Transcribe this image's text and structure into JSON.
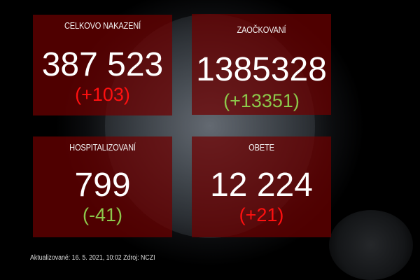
{
  "cards": [
    {
      "title": "CELKOVO NAKAZENÍ",
      "value": "387 523",
      "delta": "(+103)",
      "delta_color": "#ff1010"
    },
    {
      "title": "ZAOČKOVANÍ",
      "value": "1385328",
      "delta": "(+13351)",
      "delta_color": "#8cc84b"
    },
    {
      "title": "HOSPITALIZOVANÍ",
      "value": "799",
      "delta": "(-41)",
      "delta_color": "#8cc84b"
    },
    {
      "title": "OBETE",
      "value": "12 224",
      "delta": "(+21)",
      "delta_color": "#ff1010"
    }
  ],
  "footer": "Aktualizované: 16. 5. 2021, 10:02  Zdroj: NCZI"
}
